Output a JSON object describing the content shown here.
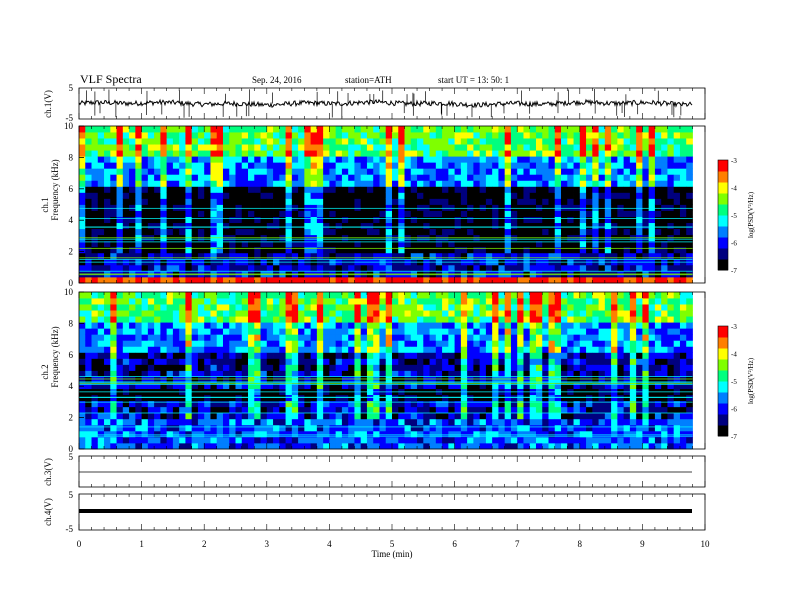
{
  "header": {
    "title": "VLF  Spectra",
    "date": "Sep. 24, 2016",
    "station": "station=ATH",
    "start": "start  UT  =   13: 50: 1"
  },
  "chart_data": [
    {
      "id": "ch1v",
      "type": "line",
      "ylabel": "ch.1(V)",
      "ylim": [
        -5,
        5
      ],
      "yticks": [
        "5",
        "-5"
      ],
      "xlim": [
        0,
        10
      ],
      "data_end_min": 9.8,
      "signal": "noisy waveform around 0 V with frequent spikes"
    },
    {
      "id": "ch1",
      "type": "heatmap",
      "ylabel": "ch.1\nFrequency  (kHz)",
      "ylabel_lines": [
        "ch.1",
        "Frequency  (kHz)"
      ],
      "ylim": [
        0,
        10
      ],
      "yticks": [
        "0",
        "2",
        "4",
        "6",
        "8",
        "10"
      ],
      "xlim": [
        0,
        10
      ],
      "data_end_min": 9.8,
      "colorbar": {
        "label": "log(PSD(V²/Hz)",
        "ticks": [
          "-3",
          "-4",
          "-5",
          "-6",
          "-7"
        ],
        "range": [
          -7,
          -3
        ]
      },
      "levels_by_khz": [
        {
          "from": 0.0,
          "to": 0.3,
          "level": -3.2
        },
        {
          "from": 0.3,
          "to": 2.0,
          "level": -6.2
        },
        {
          "from": 2.0,
          "to": 6.0,
          "level": -6.9
        },
        {
          "from": 6.0,
          "to": 8.0,
          "level": -5.6
        },
        {
          "from": 8.0,
          "to": 10.0,
          "level": -4.6
        }
      ]
    },
    {
      "id": "ch2",
      "type": "heatmap",
      "ylabel_lines": [
        "ch.2",
        "Frequency  (kHz)"
      ],
      "ylim": [
        0,
        10
      ],
      "yticks": [
        "0",
        "2",
        "4",
        "6",
        "8",
        "10"
      ],
      "xlim": [
        0,
        10
      ],
      "data_end_min": 9.8,
      "colorbar": {
        "label": "log(PSD(V²/Hz)",
        "ticks": [
          "-3",
          "-4",
          "-5",
          "-6",
          "-7"
        ],
        "range": [
          -7,
          -3
        ]
      },
      "levels_by_khz": [
        {
          "from": 0.0,
          "to": 2.0,
          "level": -5.8
        },
        {
          "from": 2.0,
          "to": 3.0,
          "level": -6.2
        },
        {
          "from": 3.0,
          "to": 4.0,
          "level": -6.9
        },
        {
          "from": 4.0,
          "to": 6.0,
          "level": -6.3
        },
        {
          "from": 6.0,
          "to": 8.0,
          "level": -5.6
        },
        {
          "from": 8.0,
          "to": 10.0,
          "level": -4.6
        }
      ]
    },
    {
      "id": "ch3v",
      "type": "line",
      "ylabel": "ch.3(V)",
      "ylim": [
        -5,
        5
      ],
      "yticks": [
        "5"
      ],
      "xlim": [
        0,
        10
      ],
      "data_end_min": 9.8,
      "signal": "flat near 0 V"
    },
    {
      "id": "ch4v",
      "type": "line",
      "ylabel": "ch.4(V)",
      "ylim": [
        -5,
        5
      ],
      "yticks": [
        "5",
        "-5"
      ],
      "xlim": [
        0,
        10
      ],
      "xlabel": "Time  (min)",
      "xticks": [
        "0",
        "1",
        "2",
        "3",
        "4",
        "5",
        "6",
        "7",
        "8",
        "9",
        "10"
      ],
      "data_end_min": 9.8,
      "signal": "thick flat band near 0 V"
    }
  ],
  "colors": {
    "scale": [
      "#000000",
      "#00007f",
      "#0000ff",
      "#007fff",
      "#00ffff",
      "#00ff7f",
      "#7fff00",
      "#ffff00",
      "#ff7f00",
      "#ff0000",
      "#ffffff"
    ]
  }
}
